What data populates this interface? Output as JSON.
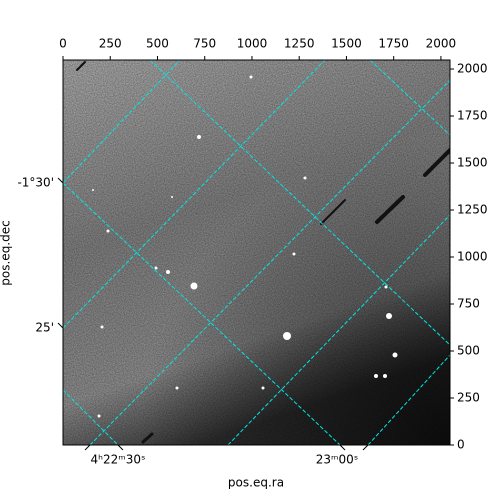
{
  "chart_data": {
    "type": "image",
    "xlabel": "pos.eq.ra",
    "ylabel": "pos.eq.dec",
    "xlim": [
      0,
      2048
    ],
    "ylim": [
      0,
      2048
    ],
    "xticks": [
      0,
      250,
      500,
      750,
      1000,
      1250,
      1500,
      1750,
      2000
    ],
    "yticks": [
      0,
      250,
      500,
      750,
      1000,
      1250,
      1500,
      1750,
      2000
    ],
    "ra_tick_labels": [
      "4ʰ22ᵐ30ˢ",
      "23ᵐ00ˢ"
    ],
    "dec_tick_labels": [
      "-1°30'",
      "25'"
    ],
    "grid_color": "#00e5e5"
  }
}
